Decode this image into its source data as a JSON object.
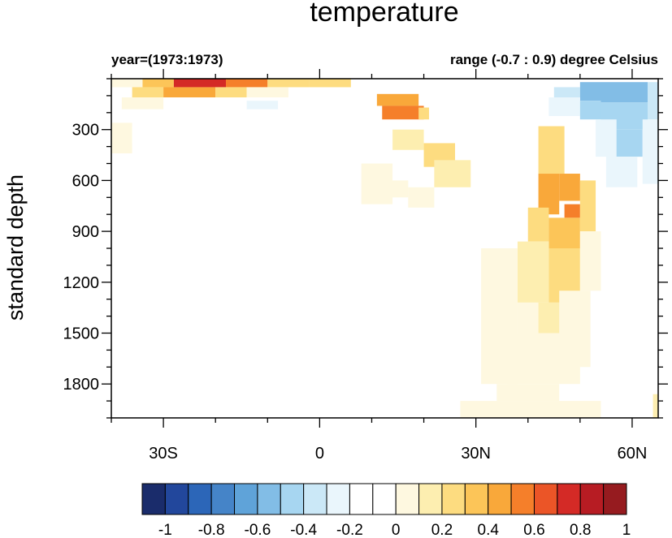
{
  "chart_data": {
    "type": "heatmap",
    "title": "temperature",
    "left_string": "year=(1973:1973)",
    "right_string": "range (-0.7 : 0.9) degree Celsius",
    "ylabel": "standard depth",
    "xlabel": "",
    "x_domain": [
      -40,
      65
    ],
    "y_domain": [
      0,
      2000
    ],
    "y_reversed": true,
    "x_ticks": [
      {
        "value": -30,
        "label": "30S"
      },
      {
        "value": 0,
        "label": "0"
      },
      {
        "value": 30,
        "label": "30N"
      },
      {
        "value": 60,
        "label": "60N"
      }
    ],
    "y_ticks": [
      {
        "value": 300,
        "label": "300"
      },
      {
        "value": 600,
        "label": "600"
      },
      {
        "value": 900,
        "label": "900"
      },
      {
        "value": 1200,
        "label": "1200"
      },
      {
        "value": 1500,
        "label": "1500"
      },
      {
        "value": 1800,
        "label": "1800"
      }
    ],
    "colorbar": {
      "colors": [
        "#1a2c6b",
        "#22479c",
        "#2c66b8",
        "#4584c8",
        "#5fa3d9",
        "#82bde6",
        "#a7d6f1",
        "#cbe8f7",
        "#eaf6fc",
        "#ffffff",
        "#ffffff",
        "#fef8e0",
        "#fdeeb0",
        "#fddc80",
        "#fcc558",
        "#f9a83a",
        "#f57f2a",
        "#eb5527",
        "#d42a26",
        "#b71c23",
        "#961b1f"
      ],
      "labels": [
        {
          "after_box": 1,
          "text": "-1"
        },
        {
          "after_box": 3,
          "text": "-0.8"
        },
        {
          "after_box": 5,
          "text": "-0.6"
        },
        {
          "after_box": 7,
          "text": "-0.4"
        },
        {
          "after_box": 9,
          "text": "-0.2"
        },
        {
          "after_box": 11,
          "text": "0"
        },
        {
          "after_box": 13,
          "text": "0.2"
        },
        {
          "after_box": 15,
          "text": "0.4"
        },
        {
          "after_box": 17,
          "text": "0.6"
        },
        {
          "after_box": 19,
          "text": "0.8"
        },
        {
          "after_box": 21,
          "text": "1"
        }
      ]
    },
    "cells": [
      {
        "x0": -40,
        "x1": -34,
        "y0": 0,
        "y1": 50,
        "v": 0.1
      },
      {
        "x0": -34,
        "x1": -28,
        "y0": 0,
        "y1": 50,
        "v": 0.4
      },
      {
        "x0": -28,
        "x1": -18,
        "y0": 0,
        "y1": 50,
        "v": 0.75
      },
      {
        "x0": -18,
        "x1": -10,
        "y0": 0,
        "y1": 50,
        "v": 0.55
      },
      {
        "x0": -10,
        "x1": -2,
        "y0": 0,
        "y1": 50,
        "v": 0.35
      },
      {
        "x0": -2,
        "x1": 6,
        "y0": 0,
        "y1": 50,
        "v": 0.3
      },
      {
        "x0": -36,
        "x1": -30,
        "y0": 50,
        "y1": 110,
        "v": 0.25
      },
      {
        "x0": -30,
        "x1": -20,
        "y0": 50,
        "y1": 110,
        "v": 0.5
      },
      {
        "x0": -20,
        "x1": -14,
        "y0": 50,
        "y1": 110,
        "v": 0.3
      },
      {
        "x0": -14,
        "x1": -6,
        "y0": 50,
        "y1": 110,
        "v": 0.15
      },
      {
        "x0": -38,
        "x1": -30,
        "y0": 110,
        "y1": 180,
        "v": 0.1
      },
      {
        "x0": -26,
        "x1": -16,
        "y0": 130,
        "y1": 250,
        "v": -0.12
      },
      {
        "x0": -14,
        "x1": -8,
        "y0": 130,
        "y1": 180,
        "v": -0.2
      },
      {
        "x0": -4,
        "x1": 2,
        "y0": 100,
        "y1": 150,
        "v": -0.12
      },
      {
        "x0": 4,
        "x1": 12,
        "y0": 60,
        "y1": 130,
        "v": -0.1
      },
      {
        "x0": 22,
        "x1": 30,
        "y0": 60,
        "y1": 110,
        "v": -0.1
      },
      {
        "x0": -40,
        "x1": -36,
        "y0": 260,
        "y1": 440,
        "v": 0.1
      },
      {
        "x0": -36,
        "x1": -26,
        "y0": 280,
        "y1": 380,
        "v": -0.05
      },
      {
        "x0": -32,
        "x1": -18,
        "y0": 680,
        "y1": 760,
        "v": -0.05
      },
      {
        "x0": 11,
        "x1": 19,
        "y0": 90,
        "y1": 160,
        "v": 0.5
      },
      {
        "x0": 12,
        "x1": 20,
        "y0": 160,
        "y1": 240,
        "v": 0.55
      },
      {
        "x0": 19,
        "x1": 21,
        "y0": 170,
        "y1": 240,
        "v": 0.35
      },
      {
        "x0": 14,
        "x1": 20,
        "y0": 300,
        "y1": 420,
        "v": 0.2
      },
      {
        "x0": 20,
        "x1": 26,
        "y0": 380,
        "y1": 520,
        "v": 0.25
      },
      {
        "x0": 22,
        "x1": 29,
        "y0": 480,
        "y1": 640,
        "v": 0.2
      },
      {
        "x0": 8,
        "x1": 14,
        "y0": 500,
        "y1": 740,
        "v": 0.1
      },
      {
        "x0": 13,
        "x1": 17,
        "y0": 600,
        "y1": 700,
        "v": 0.1
      },
      {
        "x0": 17,
        "x1": 22,
        "y0": 640,
        "y1": 760,
        "v": 0.08
      },
      {
        "x0": 32,
        "x1": 38,
        "y0": 250,
        "y1": 400,
        "v": -0.08
      },
      {
        "x0": 38,
        "x1": 43,
        "y0": 200,
        "y1": 350,
        "v": -0.12
      },
      {
        "x0": 42,
        "x1": 47,
        "y0": 280,
        "y1": 560,
        "v": 0.3
      },
      {
        "x0": 42,
        "x1": 46,
        "y0": 560,
        "y1": 800,
        "v": 0.45
      },
      {
        "x0": 46,
        "x1": 50,
        "y0": 560,
        "y1": 720,
        "v": 0.5
      },
      {
        "x0": 47,
        "x1": 50,
        "y0": 740,
        "y1": 820,
        "v": 0.6
      },
      {
        "x0": 40,
        "x1": 44,
        "y0": 760,
        "y1": 960,
        "v": 0.3
      },
      {
        "x0": 44,
        "x1": 50,
        "y0": 820,
        "y1": 1000,
        "v": 0.4
      },
      {
        "x0": 50,
        "x1": 53,
        "y0": 600,
        "y1": 900,
        "v": 0.3
      },
      {
        "x0": 38,
        "x1": 44,
        "y0": 960,
        "y1": 1320,
        "v": 0.2
      },
      {
        "x0": 44,
        "x1": 50,
        "y0": 1000,
        "y1": 1320,
        "v": 0.28
      },
      {
        "x0": 50,
        "x1": 54,
        "y0": 900,
        "y1": 1250,
        "v": 0.12
      },
      {
        "x0": 38,
        "x1": 42,
        "y0": 1320,
        "y1": 1560,
        "v": 0.12
      },
      {
        "x0": 42,
        "x1": 48,
        "y0": 1320,
        "y1": 1500,
        "v": 0.2
      },
      {
        "x0": 46,
        "x1": 52,
        "y0": 1250,
        "y1": 1700,
        "v": 0.08
      },
      {
        "x0": 31,
        "x1": 38,
        "y0": 1000,
        "y1": 1800,
        "v": 0.08
      },
      {
        "x0": 36,
        "x1": 50,
        "y0": 1500,
        "y1": 1800,
        "v": 0.05
      },
      {
        "x0": 34,
        "x1": 46,
        "y0": 1800,
        "y1": 1900,
        "v": 0.05
      },
      {
        "x0": 27,
        "x1": 54,
        "y0": 1900,
        "y1": 2000,
        "v": 0.08
      },
      {
        "x0": 64,
        "x1": 65,
        "y0": 1860,
        "y1": 2000,
        "v": 0.2
      },
      {
        "x0": 18,
        "x1": 26,
        "y0": 1500,
        "y1": 1750,
        "v": -0.1
      },
      {
        "x0": 22,
        "x1": 23,
        "y0": 1360,
        "y1": 1440,
        "v": -0.08
      },
      {
        "x0": 45,
        "x1": 50,
        "y0": 50,
        "y1": 110,
        "v": -0.35
      },
      {
        "x0": 50,
        "x1": 54,
        "y0": 20,
        "y1": 130,
        "v": -0.5
      },
      {
        "x0": 54,
        "x1": 63,
        "y0": 20,
        "y1": 140,
        "v": -0.55
      },
      {
        "x0": 63,
        "x1": 65,
        "y0": 20,
        "y1": 240,
        "v": -0.35
      },
      {
        "x0": 44,
        "x1": 50,
        "y0": 110,
        "y1": 220,
        "v": -0.2
      },
      {
        "x0": 50,
        "x1": 54,
        "y0": 130,
        "y1": 240,
        "v": -0.4
      },
      {
        "x0": 54,
        "x1": 63,
        "y0": 140,
        "y1": 300,
        "v": -0.45
      },
      {
        "x0": 55,
        "x1": 62,
        "y0": 300,
        "y1": 460,
        "v": -0.4
      },
      {
        "x0": 62,
        "x1": 65,
        "y0": 240,
        "y1": 620,
        "v": -0.2
      },
      {
        "x0": 53,
        "x1": 57,
        "y0": 240,
        "y1": 460,
        "v": -0.25
      },
      {
        "x0": 55,
        "x1": 61,
        "y0": 460,
        "y1": 640,
        "v": -0.2
      },
      {
        "x0": 57,
        "x1": 62,
        "y0": 640,
        "y1": 900,
        "v": -0.12
      },
      {
        "x0": 59,
        "x1": 63,
        "y0": 900,
        "y1": 1250,
        "v": -0.08
      },
      {
        "x0": 54,
        "x1": 59,
        "y0": 700,
        "y1": 1100,
        "v": -0.05
      }
    ]
  }
}
